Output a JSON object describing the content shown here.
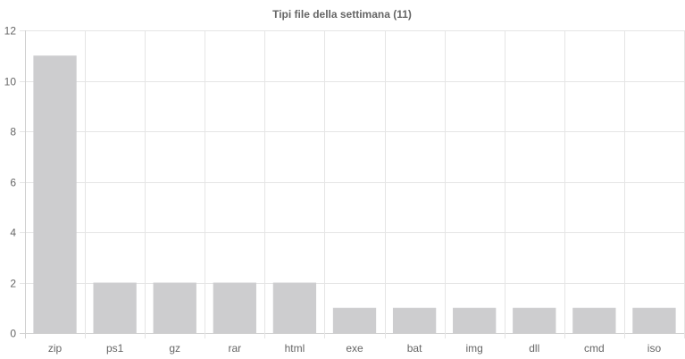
{
  "chart_data": {
    "type": "bar",
    "title": "Tipi file della settimana (11)",
    "xlabel": "",
    "ylabel": "",
    "categories": [
      "zip",
      "ps1",
      "gz",
      "rar",
      "html",
      "exe",
      "bat",
      "img",
      "dll",
      "cmd",
      "iso"
    ],
    "values": [
      11,
      2,
      2,
      2,
      2,
      1,
      1,
      1,
      1,
      1,
      1
    ],
    "ylim": [
      0,
      12
    ],
    "yticks": [
      0,
      2,
      4,
      6,
      8,
      10,
      12
    ],
    "grid": true,
    "legend": "none",
    "bar_color": "#cdcdcf",
    "grid_color": "#e5e5e5",
    "text_color": "#666666"
  }
}
